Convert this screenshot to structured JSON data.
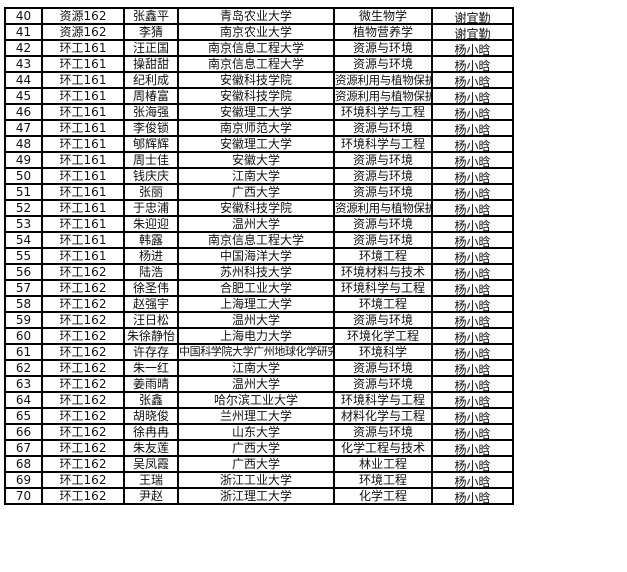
{
  "rows": [
    [
      "40",
      "资源162",
      "张鑫平",
      "青岛农业大学",
      "微生物学",
      "谢宜勤"
    ],
    [
      "41",
      "资源162",
      "李猜",
      "南京农业大学",
      "植物营养学",
      "谢宜勤"
    ],
    [
      "42",
      "环工161",
      "汪正国",
      "南京信息工程大学",
      "资源与环境",
      "杨小晗"
    ],
    [
      "43",
      "环工161",
      "操甜甜",
      "南京信息工程大学",
      "资源与环境",
      "杨小晗"
    ],
    [
      "44",
      "环工161",
      "纪利成",
      "安徽科技学院",
      "资源利用与植物保护",
      "杨小晗"
    ],
    [
      "45",
      "环工161",
      "周椿富",
      "安徽科技学院",
      "资源利用与植物保护",
      "杨小晗"
    ],
    [
      "46",
      "环工161",
      "张海强",
      "安徽理工大学",
      "环境科学与工程",
      "杨小晗"
    ],
    [
      "47",
      "环工161",
      "李俊锁",
      "南京师范大学",
      "资源与环境",
      "杨小晗"
    ],
    [
      "48",
      "环工161",
      "郇辉辉",
      "安徽理工大学",
      "环境科学与工程",
      "杨小晗"
    ],
    [
      "49",
      "环工161",
      "周士佳",
      "安徽大学",
      "资源与环境",
      "杨小晗"
    ],
    [
      "50",
      "环工161",
      "钱庆庆",
      "江南大学",
      "资源与环境",
      "杨小晗"
    ],
    [
      "51",
      "环工161",
      "张丽",
      "广西大学",
      "资源与环境",
      "杨小晗"
    ],
    [
      "52",
      "环工161",
      "于忠浦",
      "安徽科技学院",
      "资源利用与植物保护",
      "杨小晗"
    ],
    [
      "53",
      "环工161",
      "朱迎迎",
      "温州大学",
      "资源与环境",
      "杨小晗"
    ],
    [
      "54",
      "环工161",
      "韩露",
      "南京信息工程大学",
      "资源与环境",
      "杨小晗"
    ],
    [
      "55",
      "环工161",
      "杨进",
      "中国海洋大学",
      "环境工程",
      "杨小晗"
    ],
    [
      "56",
      "环工162",
      "陆浩",
      "苏州科技大学",
      "环境材料与技术",
      "杨小晗"
    ],
    [
      "57",
      "环工162",
      "徐圣伟",
      "合肥工业大学",
      "环境科学与工程",
      "杨小晗"
    ],
    [
      "58",
      "环工162",
      "赵强宇",
      "上海理工大学",
      "环境工程",
      "杨小晗"
    ],
    [
      "59",
      "环工162",
      "汪日松",
      "温州大学",
      "资源与环境",
      "杨小晗"
    ],
    [
      "60",
      "环工162",
      "朱徐静怡",
      "上海电力大学",
      "环境化学工程",
      "杨小晗"
    ],
    [
      "61",
      "环工162",
      "许存存",
      "中国科学院大学广州地球化学研究所",
      "环境科学",
      "杨小晗"
    ],
    [
      "62",
      "环工162",
      "朱一红",
      "江南大学",
      "资源与环境",
      "杨小晗"
    ],
    [
      "63",
      "环工162",
      "姜雨晴",
      "温州大学",
      "资源与环境",
      "杨小晗"
    ],
    [
      "64",
      "环工162",
      "张鑫",
      "哈尔滨工业大学",
      "环境科学与工程",
      "杨小晗"
    ],
    [
      "65",
      "环工162",
      "胡晓俊",
      "兰州理工大学",
      "材料化学与工程",
      "杨小晗"
    ],
    [
      "66",
      "环工162",
      "徐冉冉",
      "山东大学",
      "资源与环境",
      "杨小晗"
    ],
    [
      "67",
      "环工162",
      "朱友莲",
      "广西大学",
      "化学工程与技术",
      "杨小晗"
    ],
    [
      "68",
      "环工162",
      "吴凤霞",
      "广西大学",
      "林业工程",
      "杨小晗"
    ],
    [
      "69",
      "环工162",
      "王瑞",
      "浙江工业大学",
      "环境工程",
      "杨小晗"
    ],
    [
      "70",
      "环工162",
      "尹赵",
      "浙江理工大学",
      "化学工程",
      "杨小晗"
    ]
  ]
}
